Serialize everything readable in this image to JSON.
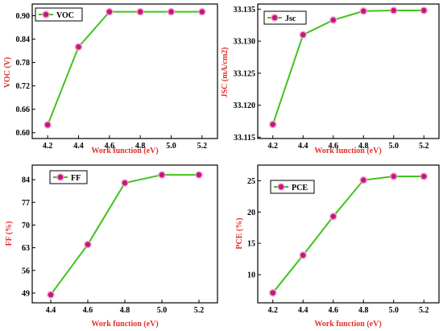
{
  "colors": {
    "line": "#3ec31b",
    "marker": "#c2187a",
    "marker_edge": "#f6a1d0",
    "axis_label": "#e0302a",
    "frame": "#000000"
  },
  "chart_data": [
    {
      "type": "line",
      "legend": "VOC",
      "legend_position": "top-left",
      "xlabel": "Work function (eV)",
      "ylabel": "VOC (V)",
      "x": [
        4.2,
        4.4,
        4.6,
        4.8,
        5.0,
        5.2
      ],
      "y": [
        0.62,
        0.82,
        0.91,
        0.91,
        0.91,
        0.91
      ],
      "xticks": [
        4.2,
        4.4,
        4.6,
        4.8,
        5.0,
        5.2
      ],
      "yticks": [
        0.6,
        0.66,
        0.72,
        0.78,
        0.84,
        0.9
      ],
      "xlim": [
        4.1,
        5.3
      ],
      "ylim": [
        0.585,
        0.93
      ],
      "xdecimals": 1,
      "ydecimals": 2
    },
    {
      "type": "line",
      "legend": "Jsc",
      "legend_position": "top-left",
      "xlabel": "Work function (eV)",
      "ylabel": "JSC (mA/cm2)",
      "x": [
        4.2,
        4.4,
        4.6,
        4.8,
        5.0,
        5.2
      ],
      "y": [
        33.117,
        33.131,
        33.1333,
        33.1347,
        33.1348,
        33.1348
      ],
      "xticks": [
        4.2,
        4.4,
        4.6,
        4.8,
        5.0,
        5.2
      ],
      "yticks": [
        33.115,
        33.12,
        33.125,
        33.13,
        33.135
      ],
      "xlim": [
        4.1,
        5.3
      ],
      "ylim": [
        33.1148,
        33.1358
      ],
      "xdecimals": 1,
      "ydecimals": 3
    },
    {
      "type": "line",
      "legend": "FF",
      "legend_position": "top-left",
      "xlabel": "Work function (eV)",
      "ylabel": "FF (%)",
      "x": [
        4.4,
        4.6,
        4.8,
        5.0,
        5.2
      ],
      "y": [
        48.5,
        64,
        83,
        85.5,
        85.5
      ],
      "xticks": [
        4.4,
        4.6,
        4.8,
        5.0,
        5.2
      ],
      "yticks": [
        49,
        56,
        63,
        70,
        77,
        84
      ],
      "xlim": [
        4.3,
        5.3
      ],
      "ylim": [
        46,
        88.5
      ],
      "xdecimals": 1,
      "ydecimals": 0
    },
    {
      "type": "line",
      "legend": "PCE",
      "legend_position": "top-left",
      "xlabel": "Work function (eV)",
      "ylabel": "PCE (%)",
      "x": [
        4.2,
        4.4,
        4.6,
        4.8,
        5.0,
        5.2
      ],
      "y": [
        7.1,
        13.1,
        19.3,
        25.1,
        25.7,
        25.7
      ],
      "xticks": [
        4.2,
        4.4,
        4.6,
        4.8,
        5.0,
        5.2
      ],
      "yticks": [
        10,
        15,
        20,
        25
      ],
      "xlim": [
        4.1,
        5.3
      ],
      "ylim": [
        5.5,
        27.5
      ],
      "xdecimals": 1,
      "ydecimals": 0
    }
  ]
}
